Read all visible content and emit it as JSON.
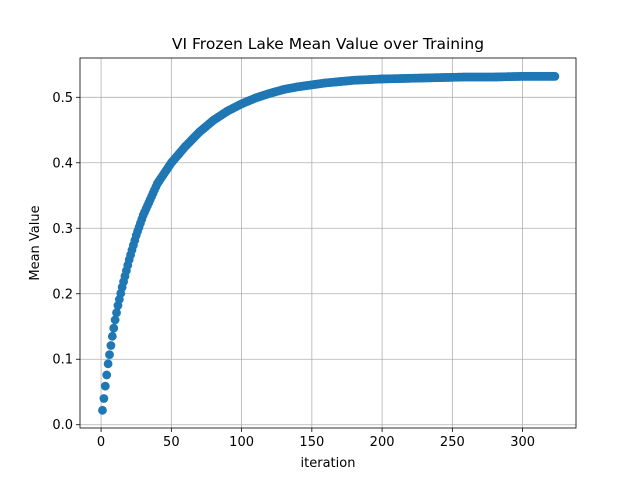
{
  "chart_data": {
    "type": "scatter",
    "title": "VI Frozen Lake Mean Value over Training",
    "xlabel": "iteration",
    "ylabel": "Mean Value",
    "xlim": [
      -15,
      338
    ],
    "ylim": [
      -0.005,
      0.56
    ],
    "xticks": [
      0,
      50,
      100,
      150,
      200,
      250,
      300
    ],
    "yticks": [
      0.0,
      0.1,
      0.2,
      0.3,
      0.4,
      0.5
    ],
    "ytick_labels": [
      "0.0",
      "0.1",
      "0.2",
      "0.3",
      "0.4",
      "0.5"
    ],
    "grid": true,
    "color": "#1f77b4",
    "x_range": [
      1,
      323
    ],
    "series": [
      {
        "x": [
          1,
          2,
          3,
          4,
          5,
          6,
          8,
          10,
          12,
          15,
          20,
          25,
          30,
          40,
          50,
          60,
          70,
          80,
          90,
          100,
          110,
          120,
          130,
          140,
          150,
          160,
          170,
          180,
          190,
          200,
          220,
          240,
          260,
          280,
          300,
          310,
          323
        ],
        "values": [
          0.022,
          0.04,
          0.059,
          0.076,
          0.093,
          0.107,
          0.135,
          0.16,
          0.182,
          0.21,
          0.252,
          0.289,
          0.32,
          0.368,
          0.4,
          0.425,
          0.447,
          0.465,
          0.479,
          0.49,
          0.499,
          0.506,
          0.512,
          0.516,
          0.519,
          0.522,
          0.524,
          0.526,
          0.527,
          0.528,
          0.529,
          0.53,
          0.531,
          0.531,
          0.532,
          0.532,
          0.532
        ]
      }
    ]
  }
}
